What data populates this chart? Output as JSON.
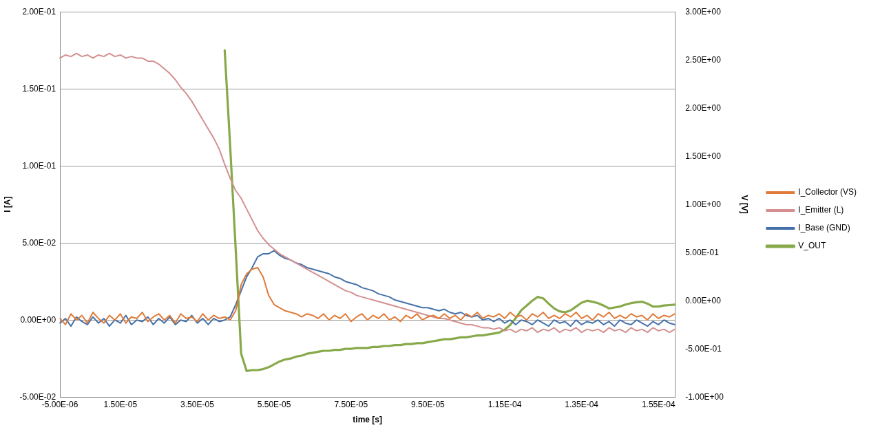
{
  "chart_data": {
    "type": "line",
    "xlabel": "time [s]",
    "ylabel": "I [A]",
    "y2label": "V [V]",
    "categories": [
      "-5.00E-06",
      null,
      null,
      null,
      null,
      null,
      null,
      null,
      null,
      null,
      null,
      "1.50E-05",
      null,
      null,
      null,
      null,
      null,
      null,
      null,
      null,
      null,
      null,
      null,
      null,
      null,
      "3.50E-05",
      null,
      null,
      null,
      null,
      null,
      null,
      null,
      null,
      null,
      null,
      null,
      null,
      null,
      "5.50E-05",
      null,
      null,
      null,
      null,
      null,
      null,
      null,
      null,
      null,
      null,
      null,
      null,
      null,
      "7.50E-05",
      null,
      null,
      null,
      null,
      null,
      null,
      null,
      null,
      null,
      null,
      null,
      null,
      null,
      "9.50E-05",
      null,
      null,
      null,
      null,
      null,
      null,
      null,
      null,
      null,
      null,
      null,
      null,
      null,
      "1.15E-04",
      null,
      null,
      null,
      null,
      null,
      null,
      null,
      null,
      null,
      null,
      null,
      null,
      null,
      "1.35E-04",
      null,
      null,
      null,
      null,
      null,
      null,
      null,
      null,
      null,
      null,
      null,
      null,
      null,
      "1.55E-04",
      null,
      null,
      null
    ],
    "series": [
      {
        "name": "I_Collector (VS)",
        "color": "#e07b39",
        "values": [
          0.001,
          -0.003,
          0.004,
          0.0,
          0.003,
          -0.002,
          0.005,
          0.001,
          -0.002,
          0.003,
          0.0,
          0.004,
          -0.002,
          0.002,
          0.001,
          0.005,
          -0.001,
          0.002,
          0.004,
          0.0,
          0.003,
          -0.002,
          0.004,
          0.001,
          0.002,
          -0.001,
          0.004,
          0.0,
          0.003,
          0.001,
          0.002,
          0.0,
          0.006,
          0.023,
          0.03,
          0.033,
          0.034,
          0.028,
          0.016,
          0.01,
          0.008,
          0.006,
          0.005,
          0.004,
          0.002,
          0.004,
          0.003,
          0.001,
          0.004,
          0.0,
          0.003,
          0.001,
          0.004,
          -0.001,
          0.002,
          0.004,
          0.0,
          0.003,
          0.001,
          0.004,
          0.0,
          0.002,
          -0.001,
          0.003,
          0.001,
          0.004,
          0.0,
          0.002,
          0.003,
          0.001,
          0.004,
          0.001,
          0.003,
          0.0,
          0.004,
          0.002,
          0.005,
          0.001,
          0.003,
          0.002,
          0.004,
          0.001,
          0.005,
          0.002,
          0.003,
          0.0,
          0.004,
          0.002,
          0.005,
          0.001,
          0.003,
          0.001,
          0.004,
          0.002,
          0.005,
          0.001,
          0.003,
          0.0,
          0.004,
          0.002,
          0.005,
          0.001,
          0.003,
          0.001,
          0.004,
          0.002,
          0.003,
          0.0,
          0.004,
          0.001,
          0.003,
          0.002,
          0.004
        ]
      },
      {
        "name": "I_Emitter (L)",
        "color": "#d48f8f",
        "values": [
          0.17,
          0.172,
          0.171,
          0.173,
          0.171,
          0.172,
          0.17,
          0.172,
          0.171,
          0.173,
          0.171,
          0.172,
          0.17,
          0.171,
          0.17,
          0.17,
          0.168,
          0.168,
          0.166,
          0.163,
          0.16,
          0.156,
          0.151,
          0.147,
          0.142,
          0.136,
          0.13,
          0.124,
          0.118,
          0.111,
          0.101,
          0.092,
          0.084,
          0.079,
          0.072,
          0.065,
          0.058,
          0.053,
          0.049,
          0.046,
          0.043,
          0.041,
          0.039,
          0.037,
          0.035,
          0.033,
          0.031,
          0.029,
          0.027,
          0.025,
          0.023,
          0.021,
          0.019,
          0.018,
          0.016,
          0.015,
          0.014,
          0.013,
          0.012,
          0.011,
          0.01,
          0.009,
          0.008,
          0.007,
          0.006,
          0.005,
          0.004,
          0.003,
          0.002,
          0.001,
          0.001,
          0.0,
          -0.001,
          -0.002,
          -0.003,
          -0.003,
          -0.004,
          -0.005,
          -0.005,
          -0.006,
          -0.005,
          -0.007,
          -0.006,
          -0.008,
          -0.006,
          -0.007,
          -0.005,
          -0.008,
          -0.006,
          -0.007,
          -0.005,
          -0.008,
          -0.006,
          -0.007,
          -0.005,
          -0.008,
          -0.006,
          -0.007,
          -0.006,
          -0.008,
          -0.005,
          -0.007,
          -0.006,
          -0.008,
          -0.005,
          -0.007,
          -0.006,
          -0.008,
          -0.005,
          -0.007,
          -0.006,
          -0.008,
          -0.006
        ]
      },
      {
        "name": "I_Base (GND)",
        "color": "#4571a8",
        "values": [
          -0.002,
          0.001,
          -0.004,
          0.002,
          -0.001,
          -0.003,
          0.002,
          -0.002,
          0.001,
          -0.004,
          0.0,
          -0.002,
          0.003,
          -0.003,
          0.0,
          -0.001,
          0.002,
          -0.003,
          0.001,
          -0.002,
          0.002,
          -0.003,
          0.0,
          -0.001,
          0.003,
          -0.002,
          0.001,
          -0.003,
          0.001,
          -0.001,
          0.0,
          0.002,
          0.01,
          0.019,
          0.028,
          0.034,
          0.041,
          0.043,
          0.043,
          0.045,
          0.042,
          0.04,
          0.039,
          0.037,
          0.036,
          0.034,
          0.033,
          0.032,
          0.031,
          0.03,
          0.028,
          0.027,
          0.025,
          0.024,
          0.023,
          0.021,
          0.02,
          0.019,
          0.017,
          0.016,
          0.015,
          0.013,
          0.012,
          0.011,
          0.01,
          0.009,
          0.008,
          0.008,
          0.007,
          0.006,
          0.007,
          0.005,
          0.004,
          0.005,
          0.003,
          0.002,
          0.003,
          0.0,
          0.001,
          -0.001,
          0.001,
          -0.002,
          0.0,
          -0.003,
          0.0,
          -0.001,
          -0.003,
          0.0,
          -0.002,
          -0.004,
          0.0,
          -0.002,
          -0.001,
          -0.004,
          0.0,
          -0.003,
          -0.001,
          -0.002,
          0.0,
          -0.003,
          -0.001,
          -0.004,
          0.0,
          -0.002,
          -0.003,
          0.0,
          -0.002,
          -0.004,
          -0.001,
          -0.003,
          0.0,
          -0.002,
          -0.003
        ]
      },
      {
        "name": "V_OUT",
        "color": "#87a94a",
        "axis": "y2",
        "values": [
          null,
          null,
          null,
          null,
          null,
          null,
          null,
          null,
          null,
          null,
          null,
          null,
          null,
          null,
          null,
          null,
          null,
          null,
          null,
          null,
          null,
          null,
          null,
          null,
          null,
          null,
          null,
          null,
          null,
          null,
          2.6,
          1.6,
          0.54,
          -0.55,
          -0.73,
          -0.72,
          -0.72,
          -0.71,
          -0.69,
          -0.66,
          -0.63,
          -0.61,
          -0.6,
          -0.58,
          -0.57,
          -0.55,
          -0.54,
          -0.53,
          -0.52,
          -0.52,
          -0.51,
          -0.51,
          -0.5,
          -0.5,
          -0.49,
          -0.49,
          -0.49,
          -0.48,
          -0.48,
          -0.47,
          -0.47,
          -0.46,
          -0.46,
          -0.45,
          -0.45,
          -0.44,
          -0.44,
          -0.43,
          -0.42,
          -0.41,
          -0.4,
          -0.4,
          -0.39,
          -0.38,
          -0.38,
          -0.37,
          -0.36,
          -0.36,
          -0.35,
          -0.34,
          -0.33,
          -0.3,
          -0.25,
          -0.18,
          -0.1,
          -0.05,
          0.0,
          0.04,
          0.025,
          -0.03,
          -0.08,
          -0.11,
          -0.12,
          -0.1,
          -0.06,
          -0.02,
          0.0,
          -0.01,
          -0.025,
          -0.05,
          -0.08,
          -0.07,
          -0.06,
          -0.04,
          -0.025,
          -0.015,
          -0.01,
          -0.03,
          -0.06,
          -0.06,
          -0.05,
          -0.045,
          -0.04
        ]
      }
    ],
    "ylim": [
      -0.05,
      0.2
    ],
    "yticks": [
      {
        "value": -0.05,
        "label": "-5.00E-02"
      },
      {
        "value": 0,
        "label": "0.00E+00"
      },
      {
        "value": 0.05,
        "label": "5.00E-02"
      },
      {
        "value": 0.1,
        "label": "1.00E-01"
      },
      {
        "value": 0.15,
        "label": "1.50E-01"
      },
      {
        "value": 0.2,
        "label": "2.00E-01"
      }
    ],
    "y2lim": [
      -1,
      3
    ],
    "y2ticks": [
      {
        "value": -1,
        "label": "-1.00E+00"
      },
      {
        "value": -0.5,
        "label": "-5.00E-01"
      },
      {
        "value": 0,
        "label": "0.00E+00"
      },
      {
        "value": 0.5,
        "label": "5.00E-01"
      },
      {
        "value": 1,
        "label": "1.00E+00"
      },
      {
        "value": 1.5,
        "label": "1.50E+00"
      },
      {
        "value": 2,
        "label": "2.00E+00"
      },
      {
        "value": 2.5,
        "label": "2.50E+00"
      },
      {
        "value": 3,
        "label": "3.00E+00"
      }
    ],
    "grid": "y",
    "legend": "right",
    "marker": "none",
    "line_style": "solid"
  }
}
